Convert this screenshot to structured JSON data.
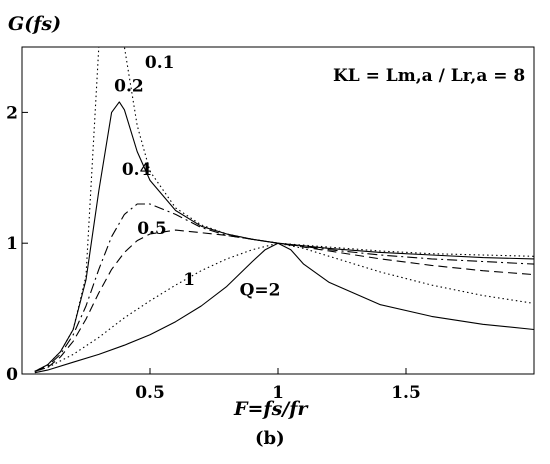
{
  "chart_data": {
    "type": "line",
    "title": "",
    "ylabel": "G(fs)",
    "xlabel": "F=fs/fr",
    "caption": "(b)",
    "annotation": "KL = Lm,a / Lr,a = 8",
    "xlim": [
      0,
      2
    ],
    "ylim": [
      0,
      2.5
    ],
    "xticks": [
      0.5,
      1,
      1.5
    ],
    "yticks": [
      0,
      1,
      2
    ],
    "grid": false,
    "legend": "none",
    "series": [
      {
        "name": "0.1",
        "style": "dotted",
        "x": [
          0.05,
          0.1,
          0.15,
          0.2,
          0.25,
          0.3,
          0.35,
          0.4,
          0.45,
          0.5,
          0.6,
          0.7,
          0.8,
          0.9,
          1.0,
          1.2,
          1.4,
          1.6,
          1.8,
          2.0
        ],
        "y": [
          0.02,
          0.07,
          0.17,
          0.34,
          0.75,
          2.5,
          2.5,
          2.5,
          1.9,
          1.55,
          1.27,
          1.14,
          1.07,
          1.03,
          1.0,
          0.97,
          0.94,
          0.92,
          0.91,
          0.9
        ]
      },
      {
        "name": "0.2",
        "style": "solid",
        "x": [
          0.05,
          0.1,
          0.15,
          0.2,
          0.25,
          0.3,
          0.35,
          0.38,
          0.4,
          0.45,
          0.5,
          0.6,
          0.7,
          0.8,
          0.9,
          1.0,
          1.2,
          1.4,
          1.6,
          1.8,
          2.0
        ],
        "y": [
          0.02,
          0.07,
          0.17,
          0.34,
          0.72,
          1.4,
          2.0,
          2.08,
          2.02,
          1.7,
          1.48,
          1.25,
          1.13,
          1.07,
          1.03,
          1.0,
          0.96,
          0.93,
          0.91,
          0.89,
          0.88
        ]
      },
      {
        "name": "0.4",
        "style": "dashdot",
        "x": [
          0.05,
          0.1,
          0.15,
          0.2,
          0.25,
          0.3,
          0.35,
          0.4,
          0.45,
          0.5,
          0.6,
          0.7,
          0.8,
          0.9,
          1.0,
          1.2,
          1.4,
          1.6,
          1.8,
          2.0
        ],
        "y": [
          0.02,
          0.06,
          0.15,
          0.3,
          0.52,
          0.8,
          1.05,
          1.22,
          1.3,
          1.3,
          1.22,
          1.12,
          1.06,
          1.03,
          1.0,
          0.95,
          0.91,
          0.88,
          0.86,
          0.84
        ]
      },
      {
        "name": "0.5",
        "style": "dashed",
        "x": [
          0.05,
          0.1,
          0.15,
          0.2,
          0.25,
          0.3,
          0.35,
          0.4,
          0.45,
          0.5,
          0.6,
          0.7,
          0.8,
          0.9,
          1.0,
          1.2,
          1.4,
          1.6,
          1.8,
          2.0
        ],
        "y": [
          0.02,
          0.05,
          0.13,
          0.25,
          0.42,
          0.62,
          0.8,
          0.93,
          1.02,
          1.07,
          1.1,
          1.08,
          1.06,
          1.03,
          1.0,
          0.94,
          0.88,
          0.83,
          0.79,
          0.76
        ]
      },
      {
        "name": "1",
        "style": "dotted",
        "x": [
          0.05,
          0.1,
          0.2,
          0.3,
          0.4,
          0.5,
          0.6,
          0.7,
          0.8,
          0.9,
          1.0,
          1.1,
          1.2,
          1.4,
          1.6,
          1.8,
          2.0
        ],
        "y": [
          0.02,
          0.05,
          0.15,
          0.28,
          0.43,
          0.56,
          0.68,
          0.79,
          0.88,
          0.95,
          1.0,
          0.96,
          0.9,
          0.78,
          0.68,
          0.6,
          0.54
        ]
      },
      {
        "name": "Q=2",
        "style": "solid",
        "x": [
          0.05,
          0.1,
          0.2,
          0.3,
          0.4,
          0.5,
          0.6,
          0.7,
          0.8,
          0.9,
          0.95,
          1.0,
          1.05,
          1.1,
          1.2,
          1.4,
          1.6,
          1.8,
          2.0
        ],
        "y": [
          0.01,
          0.03,
          0.09,
          0.15,
          0.22,
          0.3,
          0.4,
          0.52,
          0.67,
          0.86,
          0.95,
          1.0,
          0.95,
          0.84,
          0.7,
          0.53,
          0.44,
          0.38,
          0.34
        ]
      }
    ],
    "curve_labels": [
      {
        "text": "0.1",
        "x": 0.48,
        "y": 2.34
      },
      {
        "text": "0.2",
        "x": 0.36,
        "y": 2.16
      },
      {
        "text": "0.4",
        "x": 0.39,
        "y": 1.52
      },
      {
        "text": "0.5",
        "x": 0.45,
        "y": 1.07
      },
      {
        "text": "1",
        "x": 0.63,
        "y": 0.68
      },
      {
        "text": "Q=2",
        "x": 0.85,
        "y": 0.6
      }
    ]
  }
}
